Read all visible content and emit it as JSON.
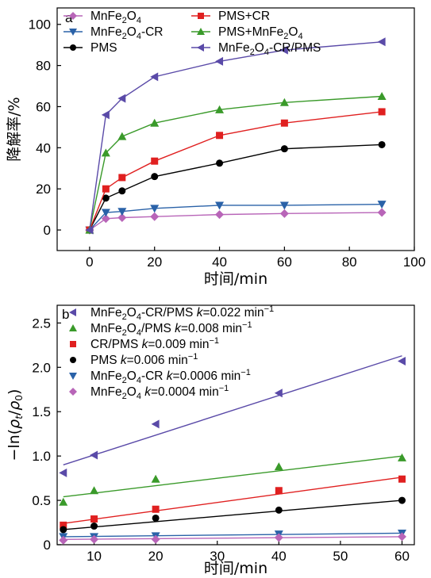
{
  "chart_data": [
    {
      "panel_label": "a",
      "type": "line",
      "xlabel": "时间/min",
      "ylabel": "降解率/%",
      "xlim": [
        -10,
        100
      ],
      "ylim": [
        -10,
        108
      ],
      "xticks": [
        "0",
        "20",
        "40",
        "60",
        "80",
        "100"
      ],
      "yticks": [
        "0",
        "20",
        "40",
        "60",
        "80",
        "100"
      ],
      "legend": "top-left, two columns",
      "x": [
        0,
        5,
        10,
        20,
        40,
        60,
        90
      ],
      "series": [
        {
          "name": "MnFe2O4",
          "legend_html": "MnFe<tspan font-size='11' dy='4'>2</tspan><tspan dy='-4'>O</tspan><tspan font-size='11' dy='4'>4</tspan>",
          "color": "#b865b8",
          "marker": "diamond",
          "values": [
            0,
            5.5,
            6,
            6.5,
            7.5,
            8,
            8.5
          ]
        },
        {
          "name": "MnFe2O4-CR",
          "legend_html": "MnFe<tspan font-size='11' dy='4'>2</tspan><tspan dy='-4'>O</tspan><tspan font-size='11' dy='4'>4</tspan><tspan dy='-4'>-CR</tspan>",
          "color": "#2a62a8",
          "marker": "triangle-down",
          "values": [
            0,
            8.5,
            9,
            10.5,
            12,
            12,
            12.5
          ]
        },
        {
          "name": "PMS",
          "legend_html": "PMS",
          "color": "#000000",
          "marker": "circle",
          "values": [
            0,
            15.5,
            19,
            26,
            32.5,
            39.5,
            41.5
          ]
        },
        {
          "name": "PMS+CR",
          "legend_html": "PMS+CR",
          "color": "#e02020",
          "marker": "square",
          "values": [
            0,
            20,
            25.5,
            33.5,
            46,
            52,
            57.5
          ]
        },
        {
          "name": "PMS+MnFe2O4",
          "legend_html": "PMS+MnFe<tspan font-size='11' dy='4'>2</tspan><tspan dy='-4'>O</tspan><tspan font-size='11' dy='4'>4</tspan>",
          "color": "#3a9a2a",
          "marker": "triangle-up",
          "values": [
            0,
            37.5,
            45.5,
            52,
            58.5,
            62,
            65
          ]
        },
        {
          "name": "MnFe2O4-CR/PMS",
          "legend_html": "MnFe<tspan font-size='11' dy='4'>2</tspan><tspan dy='-4'>O</tspan><tspan font-size='11' dy='4'>4</tspan><tspan dy='-4'>-CR/PMS</tspan>",
          "color": "#5a4aa8",
          "marker": "triangle-left",
          "values": [
            0,
            56,
            64,
            74.5,
            82,
            87.5,
            91.5
          ]
        }
      ]
    },
    {
      "panel_label": "b",
      "type": "scatter",
      "xlabel": "时间/min",
      "ylabel": "−ln(ρt/ρ0)",
      "xlim": [
        4,
        62
      ],
      "ylim": [
        0,
        2.7
      ],
      "xticks": [
        "10",
        "20",
        "30",
        "40",
        "50",
        "60"
      ],
      "yticks": [
        "0",
        "0.5",
        "1.0",
        "1.5",
        "2.0",
        "2.5"
      ],
      "legend": "top-left",
      "x": [
        5,
        10,
        20,
        40,
        60
      ],
      "series": [
        {
          "name": "MnFe2O4-CR/PMS k=0.022 min−1",
          "legend_html": "MnFe<tspan font-size='11' dy='4'>2</tspan><tspan dy='-4'>O</tspan><tspan font-size='11' dy='4'>4</tspan><tspan dy='-4'>-CR/PMS </tspan><tspan font-style='italic'>k</tspan>=0.022 min<tspan font-size='11' dy='-6'>−1</tspan>",
          "color": "#5a4aa8",
          "marker": "triangle-left",
          "values": [
            0.81,
            1.01,
            1.36,
            1.71,
            2.07
          ],
          "fit": [
            0.9,
            2.13
          ]
        },
        {
          "name": "MnFe2O4/PMS k=0.008 min−1",
          "legend_html": "MnFe<tspan font-size='11' dy='4'>2</tspan><tspan dy='-4'>O</tspan><tspan font-size='11' dy='4'>4</tspan><tspan dy='-4'>/PMS </tspan><tspan font-style='italic'>k</tspan>=0.008 min<tspan font-size='11' dy='-6'>−1</tspan>",
          "color": "#3a9a2a",
          "marker": "triangle-up",
          "values": [
            0.48,
            0.61,
            0.74,
            0.88,
            0.98
          ],
          "fit": [
            0.54,
            1.0
          ]
        },
        {
          "name": "CR/PMS k=0.009 min−1",
          "legend_html": "CR/PMS <tspan font-style='italic'>k</tspan>=0.009 min<tspan font-size='11' dy='-6'>−1</tspan>",
          "color": "#e02020",
          "marker": "square",
          "values": [
            0.22,
            0.29,
            0.4,
            0.61,
            0.74
          ],
          "fit": [
            0.24,
            0.76
          ]
        },
        {
          "name": "PMS k=0.006 min−1",
          "legend_html": "PMS <tspan font-style='italic'>k</tspan>=0.006 min<tspan font-size='11' dy='-6'>−1</tspan>",
          "color": "#000000",
          "marker": "circle",
          "values": [
            0.17,
            0.21,
            0.3,
            0.39,
            0.5
          ],
          "fit": [
            0.17,
            0.5
          ]
        },
        {
          "name": "MnFe2O4-CR k=0.0006 min−1",
          "legend_html": "MnFe<tspan font-size='11' dy='4'>2</tspan><tspan dy='-4'>O</tspan><tspan font-size='11' dy='4'>4</tspan><tspan dy='-4'>-CR </tspan><tspan font-style='italic'>k</tspan>=0.0006 min<tspan font-size='11' dy='-6'>−1</tspan>",
          "color": "#2a62a8",
          "marker": "triangle-down",
          "values": [
            0.09,
            0.09,
            0.1,
            0.12,
            0.13
          ],
          "fit": [
            0.09,
            0.13
          ]
        },
        {
          "name": "MnFe2O4 k=0.0004 min−1",
          "legend_html": "MnFe<tspan font-size='11' dy='4'>2</tspan><tspan dy='-4'>O</tspan><tspan font-size='11' dy='4'>4</tspan><tspan dy='-4'> </tspan><tspan font-style='italic'>k</tspan>=0.0004 min<tspan font-size='11' dy='-6'>−1</tspan>",
          "color": "#b865b8",
          "marker": "diamond",
          "values": [
            0.05,
            0.06,
            0.06,
            0.08,
            0.09
          ],
          "fit": [
            0.06,
            0.09
          ]
        }
      ]
    }
  ]
}
